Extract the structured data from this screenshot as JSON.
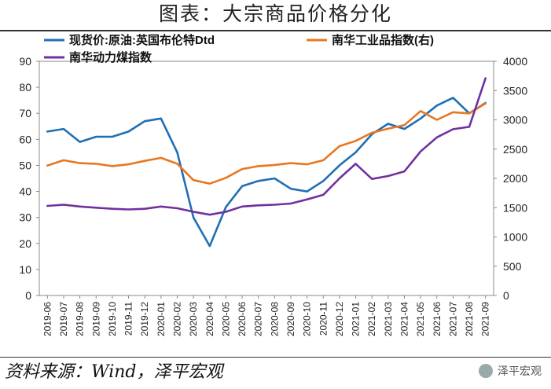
{
  "page": {
    "title": "图表：大宗商品价格分化",
    "source": "资料来源：Wind，泽平宏观",
    "brand": "泽平宏观",
    "brand_icon": "wechat-icon"
  },
  "chart_data": {
    "type": "line",
    "x": [
      "2019-06",
      "2019-07",
      "2019-08",
      "2019-09",
      "2019-10",
      "2019-11",
      "2019-12",
      "2020-01",
      "2020-02",
      "2020-03",
      "2020-04",
      "2020-05",
      "2020-06",
      "2020-07",
      "2020-08",
      "2020-09",
      "2020-10",
      "2020-11",
      "2020-12",
      "2021-01",
      "2021-02",
      "2021-03",
      "2021-04",
      "2021-05",
      "2021-06",
      "2021-07",
      "2021-08",
      "2021-09"
    ],
    "ylim_left": [
      0,
      90
    ],
    "yticks_left": [
      0,
      10,
      20,
      30,
      40,
      50,
      60,
      70,
      80,
      90
    ],
    "ylim_right": [
      0,
      4000
    ],
    "yticks_right": [
      0,
      500,
      1000,
      1500,
      2000,
      2500,
      3000,
      3500,
      4000
    ],
    "legend_position": "top",
    "series": [
      {
        "name": "现货价:原油:英国布伦特Dtd",
        "axis": "left",
        "color": "#1f6fb5",
        "values": [
          63,
          64,
          59,
          61,
          61,
          63,
          67,
          68,
          55,
          30,
          19,
          34,
          42,
          44,
          45,
          41,
          40,
          44,
          50,
          55,
          62,
          66,
          64,
          68,
          73,
          76,
          70,
          74
        ]
      },
      {
        "name": "南华工业品指数(右)",
        "axis": "right",
        "color": "#e87722",
        "values": [
          2220,
          2310,
          2260,
          2250,
          2210,
          2240,
          2300,
          2350,
          2250,
          1970,
          1910,
          2010,
          2160,
          2210,
          2230,
          2260,
          2240,
          2310,
          2550,
          2640,
          2780,
          2850,
          2910,
          3150,
          3000,
          3130,
          3110,
          3280
        ]
      },
      {
        "name": "南华动力煤指数",
        "axis": "right",
        "color": "#7030a0",
        "values": [
          1530,
          1550,
          1520,
          1500,
          1480,
          1470,
          1480,
          1520,
          1490,
          1430,
          1380,
          1430,
          1520,
          1540,
          1550,
          1570,
          1640,
          1720,
          2000,
          2250,
          1990,
          2040,
          2120,
          2460,
          2700,
          2840,
          2880,
          3710
        ]
      }
    ]
  }
}
